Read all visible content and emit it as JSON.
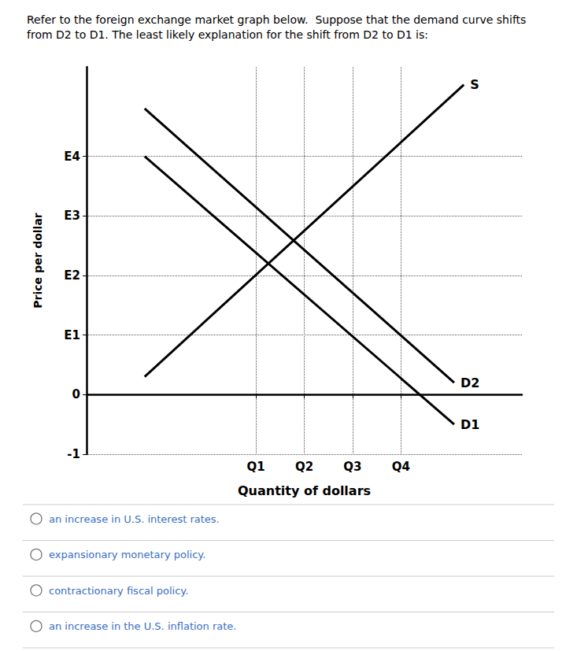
{
  "chart_data": {
    "type": "line",
    "title": "Refer to the foreign exchange market graph below.  Suppose that the demand curve shifts from D2 to D1. The least likely explanation for the shift from D2 to D1 is:",
    "xlabel": "Quantity of dollars",
    "ylabel": "Price per dollar",
    "xlim": [
      0,
      9.0
    ],
    "ylim": [
      -1,
      5.5
    ],
    "xticks": [
      {
        "value": 3.5,
        "label": "Q1"
      },
      {
        "value": 4.5,
        "label": "Q2"
      },
      {
        "value": 5.5,
        "label": "Q3"
      },
      {
        "value": 6.5,
        "label": "Q4"
      }
    ],
    "yticks": [
      -1,
      0,
      {
        "value": 1.0,
        "label": "E1"
      },
      {
        "value": 2.0,
        "label": "E2"
      },
      {
        "value": 3.0,
        "label": "E3"
      },
      {
        "value": 4.0,
        "label": "E4"
      }
    ],
    "grid": true,
    "series": [
      {
        "name": "S",
        "color": "#000000",
        "x": [
          1.2,
          7.8
        ],
        "values": [
          0.3,
          5.2
        ]
      },
      {
        "name": "D2",
        "color": "#000000",
        "x": [
          1.2,
          7.6
        ],
        "values": [
          4.8,
          0.2
        ]
      },
      {
        "name": "D1",
        "color": "#000000",
        "x": [
          1.2,
          7.6
        ],
        "values": [
          4.0,
          -0.5
        ]
      }
    ],
    "annotations": [
      "an increase in U.S. interest rates.",
      "expansionary monetary policy.",
      "contractionary fiscal policy.",
      "an increase in the U.S. inflation rate."
    ]
  }
}
